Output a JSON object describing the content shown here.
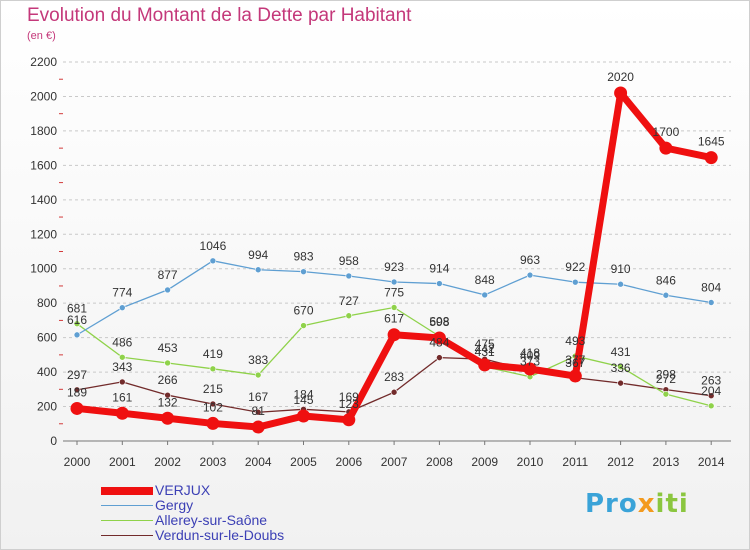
{
  "header": {
    "title": "Evolution du Montant de la Dette par Habitant",
    "subtitle": "(en €)"
  },
  "brand": {
    "parts": [
      "Pro",
      "x",
      "iti"
    ],
    "colors": [
      "#3aa3d8",
      "#f39a1e",
      "#8bc63f"
    ]
  },
  "chart_data": {
    "type": "line",
    "title": "Evolution du Montant de la Dette par Habitant",
    "subtitle": "(en €)",
    "xlabel": "",
    "ylabel": "",
    "x": [
      "2000",
      "2001",
      "2002",
      "2003",
      "2004",
      "2005",
      "2006",
      "2007",
      "2008",
      "2009",
      "2010",
      "2011",
      "2012",
      "2013",
      "2014"
    ],
    "y_ticks": [
      "0",
      "200",
      "400",
      "600",
      "800",
      "1000",
      "1200",
      "1400",
      "1600",
      "1800",
      "2000",
      "2200"
    ],
    "ylim": [
      0,
      2200
    ],
    "grid": "horizontal dashed",
    "legend_position": "bottom-left",
    "series": [
      {
        "name": "VERJUX",
        "color": "#ef1010",
        "values": [
          189,
          161,
          132,
          102,
          81,
          145,
          123,
          617,
          598,
          442,
          418,
          377,
          2020,
          1700,
          1645
        ],
        "labels": [
          "189",
          "161",
          "132",
          "102",
          "81",
          "145",
          "123",
          "617",
          "598",
          "442",
          "418",
          "377",
          "2020",
          "1700",
          "1645"
        ]
      },
      {
        "name": "Gergy",
        "color": "#5f9fd2",
        "values": [
          616,
          774,
          877,
          1046,
          994,
          983,
          958,
          923,
          914,
          848,
          963,
          922,
          910,
          846,
          804
        ],
        "labels": [
          "616",
          "774",
          "877",
          "1046",
          "994",
          "983",
          "958",
          "923",
          "914",
          "848",
          "963",
          "922",
          "910",
          "846",
          "804"
        ]
      },
      {
        "name": "Allerey-sur-Saône",
        "color": "#8fd24a",
        "values": [
          681,
          486,
          453,
          419,
          383,
          670,
          727,
          775,
          608,
          431,
          373,
          493,
          431,
          272,
          204
        ],
        "labels": [
          "681",
          "486",
          "453",
          "419",
          "383",
          "670",
          "727",
          "775",
          "608",
          "431",
          "373",
          "493",
          "431",
          "272",
          "204"
        ]
      },
      {
        "name": "Verdun-sur-le-Doubs",
        "color": "#722b2b",
        "values": [
          297,
          343,
          266,
          215,
          167,
          184,
          169,
          283,
          484,
          475,
          409,
          367,
          336,
          298,
          263
        ],
        "labels": [
          "297",
          "343",
          "266",
          "215",
          "167",
          "184",
          "169",
          "283",
          "484",
          "475",
          "409",
          "367",
          "336",
          "298",
          "263"
        ]
      }
    ]
  }
}
